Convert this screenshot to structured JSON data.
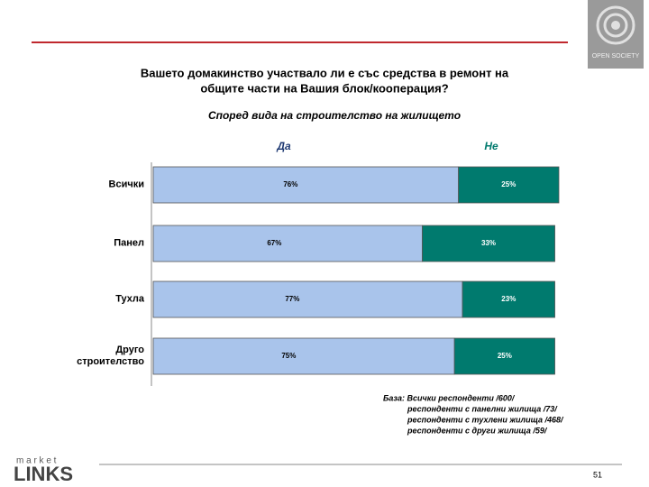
{
  "chart_data": {
    "type": "bar",
    "orientation": "horizontal",
    "stacked": true,
    "title": [
      "Вашето домакинство участвало ли е със средства в ремонт на",
      "общите части на Вашия блок/кооперация?"
    ],
    "subtitle": "Според вида на строителство на жилището",
    "categories": [
      "Всички",
      "Панел",
      "Тухла",
      "Друго\nстроителство"
    ],
    "series": [
      {
        "name": "Да",
        "color": "#a9c4eb",
        "values": [
          76,
          67,
          77,
          75
        ],
        "value_labels": [
          "76%",
          "67%",
          "77%",
          "75%"
        ]
      },
      {
        "name": "Не",
        "color": "#007a6e",
        "values": [
          25,
          33,
          23,
          25
        ],
        "value_labels": [
          "25%",
          "33%",
          "23%",
          "25%"
        ]
      }
    ],
    "notes": [
      "База: Всички респонденти /600/",
      "респонденти с панелни жилища /73/",
      "респонденти с тухлени жилища /468/",
      "респонденти с други жилища /59/"
    ]
  },
  "footer": {
    "page_number": "51",
    "logo_top": "m a r k e t",
    "logo_bottom": "LINKS",
    "corner_logo": "OPEN SOCIETY"
  }
}
